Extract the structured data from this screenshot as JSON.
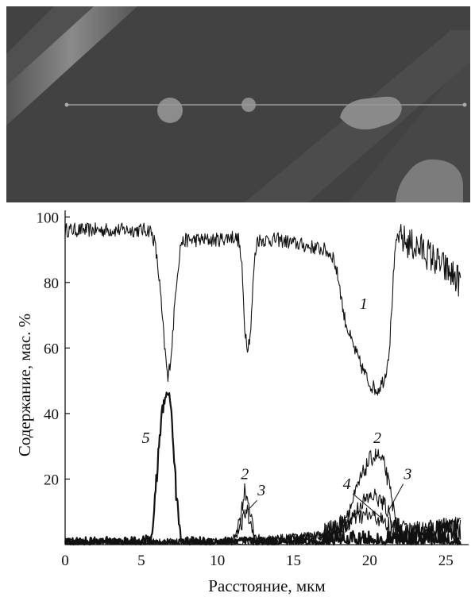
{
  "chart_data": {
    "type": "line",
    "title": "",
    "xlabel": "Расстояние, мкм",
    "ylabel": "Содержание, мас. %",
    "xlim": [
      0,
      26.5
    ],
    "ylim": [
      0,
      102
    ],
    "x_ticks": [
      0,
      5,
      10,
      15,
      20,
      25
    ],
    "y_ticks": [
      20,
      40,
      60,
      80,
      100
    ],
    "x_tick_labels": [
      "0",
      "5",
      "10",
      "15",
      "20",
      "25"
    ],
    "y_tick_labels": [
      "20",
      "40",
      "60",
      "80",
      "100"
    ],
    "grid": false,
    "legend": "none",
    "series": [
      {
        "name": "1",
        "label_at": [
          19.6,
          72
        ],
        "points": [
          [
            0,
            96
          ],
          [
            1,
            96
          ],
          [
            2,
            96
          ],
          [
            3,
            96
          ],
          [
            4,
            96
          ],
          [
            5,
            96
          ],
          [
            5.6,
            96
          ],
          [
            5.9,
            92
          ],
          [
            6.2,
            80
          ],
          [
            6.5,
            62
          ],
          [
            6.75,
            50
          ],
          [
            7.0,
            60
          ],
          [
            7.3,
            80
          ],
          [
            7.6,
            92
          ],
          [
            8,
            93
          ],
          [
            9,
            93
          ],
          [
            10,
            93
          ],
          [
            11,
            94
          ],
          [
            11.4,
            93
          ],
          [
            11.6,
            85
          ],
          [
            11.8,
            66
          ],
          [
            12.0,
            60
          ],
          [
            12.2,
            66
          ],
          [
            12.4,
            85
          ],
          [
            12.6,
            93
          ],
          [
            13,
            93
          ],
          [
            14,
            93
          ],
          [
            15,
            92
          ],
          [
            16,
            91
          ],
          [
            17,
            90
          ],
          [
            17.6,
            88
          ],
          [
            18,
            80
          ],
          [
            18.3,
            70
          ],
          [
            18.8,
            62
          ],
          [
            19.4,
            55
          ],
          [
            20,
            49
          ],
          [
            20.5,
            47
          ],
          [
            21,
            51
          ],
          [
            21.3,
            60
          ],
          [
            21.6,
            85
          ],
          [
            21.8,
            94
          ],
          [
            22.5,
            92
          ],
          [
            23.5,
            90
          ],
          [
            24.5,
            86
          ],
          [
            25.5,
            82
          ],
          [
            26,
            80
          ]
        ]
      },
      {
        "name": "2",
        "label_at": [
          20.5,
          31
        ],
        "points": [
          [
            0,
            0.5
          ],
          [
            10,
            0.5
          ],
          [
            11,
            1
          ],
          [
            11.5,
            8
          ],
          [
            11.8,
            17
          ],
          [
            12.1,
            12
          ],
          [
            12.4,
            3
          ],
          [
            13,
            1
          ],
          [
            15,
            2
          ],
          [
            17,
            3
          ],
          [
            18,
            5
          ],
          [
            18.8,
            12
          ],
          [
            19.4,
            20
          ],
          [
            20,
            26
          ],
          [
            20.5,
            27.5
          ],
          [
            21,
            24
          ],
          [
            21.4,
            15
          ],
          [
            21.8,
            5
          ],
          [
            22.5,
            3
          ],
          [
            24,
            4
          ],
          [
            25,
            5
          ],
          [
            26,
            5
          ]
        ]
      },
      {
        "name": "3",
        "label_at": [
          22.5,
          20
        ],
        "points": [
          [
            0,
            0.5
          ],
          [
            11,
            0.5
          ],
          [
            11.6,
            6
          ],
          [
            11.9,
            11
          ],
          [
            12.2,
            6
          ],
          [
            12.6,
            1
          ],
          [
            15,
            2
          ],
          [
            17,
            3
          ],
          [
            18.5,
            6
          ],
          [
            19.5,
            13
          ],
          [
            20.3,
            15
          ],
          [
            21,
            12
          ],
          [
            21.5,
            7
          ],
          [
            22,
            3
          ],
          [
            24,
            4
          ],
          [
            26,
            5
          ]
        ]
      },
      {
        "name": "4",
        "label_at": [
          18.5,
          17
        ],
        "points": [
          [
            0,
            0.5
          ],
          [
            11,
            0.5
          ],
          [
            12,
            1
          ],
          [
            15,
            2
          ],
          [
            17,
            2.5
          ],
          [
            18.2,
            5
          ],
          [
            19,
            8
          ],
          [
            19.8,
            9
          ],
          [
            20.6,
            8
          ],
          [
            21.3,
            5
          ],
          [
            22,
            3
          ],
          [
            24,
            4
          ],
          [
            26,
            5
          ]
        ]
      },
      {
        "name": "5",
        "label_at": [
          5.3,
          31
        ],
        "points": [
          [
            0,
            1
          ],
          [
            5,
            1
          ],
          [
            5.7,
            2
          ],
          [
            6.0,
            20
          ],
          [
            6.3,
            38
          ],
          [
            6.7,
            48
          ],
          [
            7.0,
            40
          ],
          [
            7.3,
            15
          ],
          [
            7.6,
            2
          ],
          [
            8,
            1
          ],
          [
            12,
            1
          ],
          [
            20,
            0.5
          ],
          [
            26,
            0.5
          ]
        ]
      }
    ]
  }
}
